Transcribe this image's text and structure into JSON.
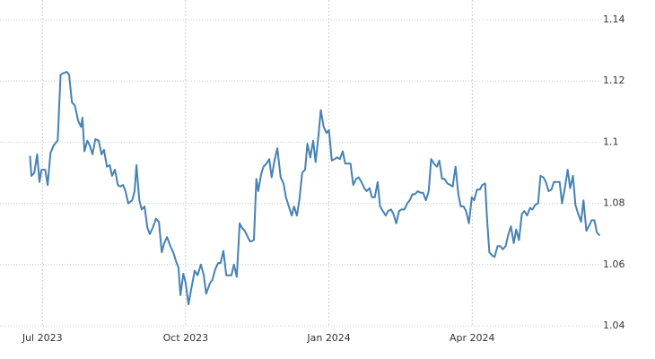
{
  "chart_data": {
    "type": "line",
    "color": "#4682b4",
    "grid": true,
    "xlim": [
      -0.38,
      11.7
    ],
    "xticks": [
      {
        "value": 0,
        "label": "Jul 2023"
      },
      {
        "value": 3,
        "label": "Oct 2023"
      },
      {
        "value": 6,
        "label": "Jan 2024"
      },
      {
        "value": 9,
        "label": "Apr 2024"
      }
    ],
    "ylim": [
      1.04,
      1.14
    ],
    "yticks": [
      1.04,
      1.06,
      1.08,
      1.1,
      1.12,
      1.14
    ],
    "x": [
      -0.26,
      -0.23,
      -0.17,
      -0.11,
      -0.06,
      -0.02,
      0.06,
      0.11,
      0.17,
      0.24,
      0.32,
      0.38,
      0.43,
      0.51,
      0.56,
      0.62,
      0.68,
      0.75,
      0.81,
      0.84,
      0.88,
      0.94,
      0.99,
      1.05,
      1.11,
      1.18,
      1.24,
      1.29,
      1.35,
      1.41,
      1.46,
      1.52,
      1.58,
      1.63,
      1.69,
      1.74,
      1.8,
      1.88,
      1.93,
      1.97,
      2.03,
      2.08,
      2.14,
      2.2,
      2.25,
      2.31,
      2.38,
      2.44,
      2.5,
      2.55,
      2.61,
      2.68,
      2.74,
      2.8,
      2.85,
      2.89,
      2.95,
      3.0,
      3.06,
      3.11,
      3.19,
      3.25,
      3.32,
      3.38,
      3.43,
      3.51,
      3.56,
      3.62,
      3.68,
      3.73,
      3.79,
      3.85,
      3.9,
      3.96,
      4.01,
      4.07,
      4.13,
      4.18,
      4.24,
      4.3,
      4.35,
      4.43,
      4.48,
      4.52,
      4.58,
      4.63,
      4.69,
      4.75,
      4.8,
      4.86,
      4.92,
      4.99,
      5.05,
      5.1,
      5.16,
      5.22,
      5.27,
      5.33,
      5.38,
      5.44,
      5.5,
      5.55,
      5.61,
      5.67,
      5.72,
      5.78,
      5.83,
      5.89,
      5.95,
      6.0,
      6.06,
      6.12,
      6.17,
      6.23,
      6.29,
      6.34,
      6.4,
      6.45,
      6.51,
      6.57,
      6.62,
      6.68,
      6.74,
      6.79,
      6.85,
      6.9,
      6.96,
      7.02,
      7.07,
      7.13,
      7.19,
      7.24,
      7.3,
      7.35,
      7.41,
      7.47,
      7.52,
      7.58,
      7.64,
      7.69,
      7.75,
      7.8,
      7.86,
      7.92,
      7.97,
      8.03,
      8.09,
      8.14,
      8.2,
      8.26,
      8.31,
      8.37,
      8.42,
      8.48,
      8.54,
      8.59,
      8.65,
      8.71,
      8.76,
      8.82,
      8.87,
      8.93,
      8.99,
      9.04,
      9.1,
      9.16,
      9.21,
      9.27,
      9.31,
      9.36,
      9.42,
      9.47,
      9.53,
      9.59,
      9.64,
      9.7,
      9.76,
      9.81,
      9.87,
      9.92,
      9.98,
      10.04,
      10.09,
      10.15,
      10.21,
      10.26,
      10.32,
      10.38,
      10.43,
      10.49,
      10.54,
      10.6,
      10.66,
      10.71,
      10.77,
      10.83,
      10.88,
      10.94,
      11.0,
      11.05,
      11.11,
      11.16,
      11.22,
      11.28,
      11.33,
      11.39,
      11.44,
      11.5,
      11.56,
      11.61,
      11.67
    ],
    "values": [
      1.0955,
      1.089,
      1.09,
      1.096,
      1.087,
      1.091,
      1.091,
      1.086,
      1.0965,
      1.099,
      1.1005,
      1.122,
      1.1225,
      1.123,
      1.122,
      1.113,
      1.112,
      1.107,
      1.105,
      1.108,
      1.097,
      1.1005,
      1.099,
      1.096,
      1.101,
      1.1005,
      1.096,
      1.0975,
      1.092,
      1.0925,
      1.089,
      1.091,
      1.086,
      1.0855,
      1.086,
      1.084,
      1.08,
      1.081,
      1.084,
      1.0925,
      1.081,
      1.078,
      1.079,
      1.072,
      1.07,
      1.072,
      1.075,
      1.074,
      1.064,
      1.067,
      1.069,
      1.066,
      1.064,
      1.061,
      1.059,
      1.05,
      1.057,
      1.054,
      1.047,
      1.0515,
      1.058,
      1.0565,
      1.06,
      1.0565,
      1.0505,
      1.054,
      1.055,
      1.0585,
      1.0605,
      1.0605,
      1.0645,
      1.0565,
      1.0565,
      1.0565,
      1.06,
      1.056,
      1.0735,
      1.072,
      1.071,
      1.069,
      1.0675,
      1.068,
      1.088,
      1.084,
      1.0895,
      1.092,
      1.093,
      1.0945,
      1.0885,
      1.094,
      1.098,
      1.0885,
      1.0865,
      1.082,
      1.079,
      1.076,
      1.079,
      1.076,
      1.081,
      1.09,
      1.091,
      1.0995,
      1.095,
      1.1005,
      1.0935,
      1.102,
      1.1105,
      1.105,
      1.103,
      1.104,
      1.094,
      1.0945,
      1.095,
      1.0945,
      1.097,
      1.093,
      1.093,
      1.093,
      1.086,
      1.088,
      1.0885,
      1.087,
      1.085,
      1.084,
      1.085,
      1.082,
      1.082,
      1.087,
      1.079,
      1.0775,
      1.076,
      1.0775,
      1.078,
      1.0765,
      1.0735,
      1.0775,
      1.078,
      1.078,
      1.08,
      1.081,
      1.083,
      1.083,
      1.084,
      1.0835,
      1.0835,
      1.081,
      1.084,
      1.0945,
      1.093,
      1.092,
      1.094,
      1.088,
      1.088,
      1.0865,
      1.086,
      1.0855,
      1.092,
      1.083,
      1.079,
      1.079,
      1.0775,
      1.0735,
      1.082,
      1.081,
      1.0845,
      1.0845,
      1.086,
      1.0865,
      1.075,
      1.064,
      1.063,
      1.0625,
      1.066,
      1.066,
      1.065,
      1.066,
      1.07,
      1.0725,
      1.067,
      1.0715,
      1.068,
      1.0765,
      1.0775,
      1.076,
      1.0785,
      1.078,
      1.0795,
      1.08,
      1.089,
      1.0885,
      1.087,
      1.084,
      1.0845,
      1.087,
      1.087,
      1.087,
      1.08,
      1.085,
      1.091,
      1.085,
      1.089,
      1.0795,
      1.0765,
      1.074,
      1.081,
      1.071,
      1.0725,
      1.0745,
      1.0745,
      1.0705,
      1.0695
    ]
  }
}
